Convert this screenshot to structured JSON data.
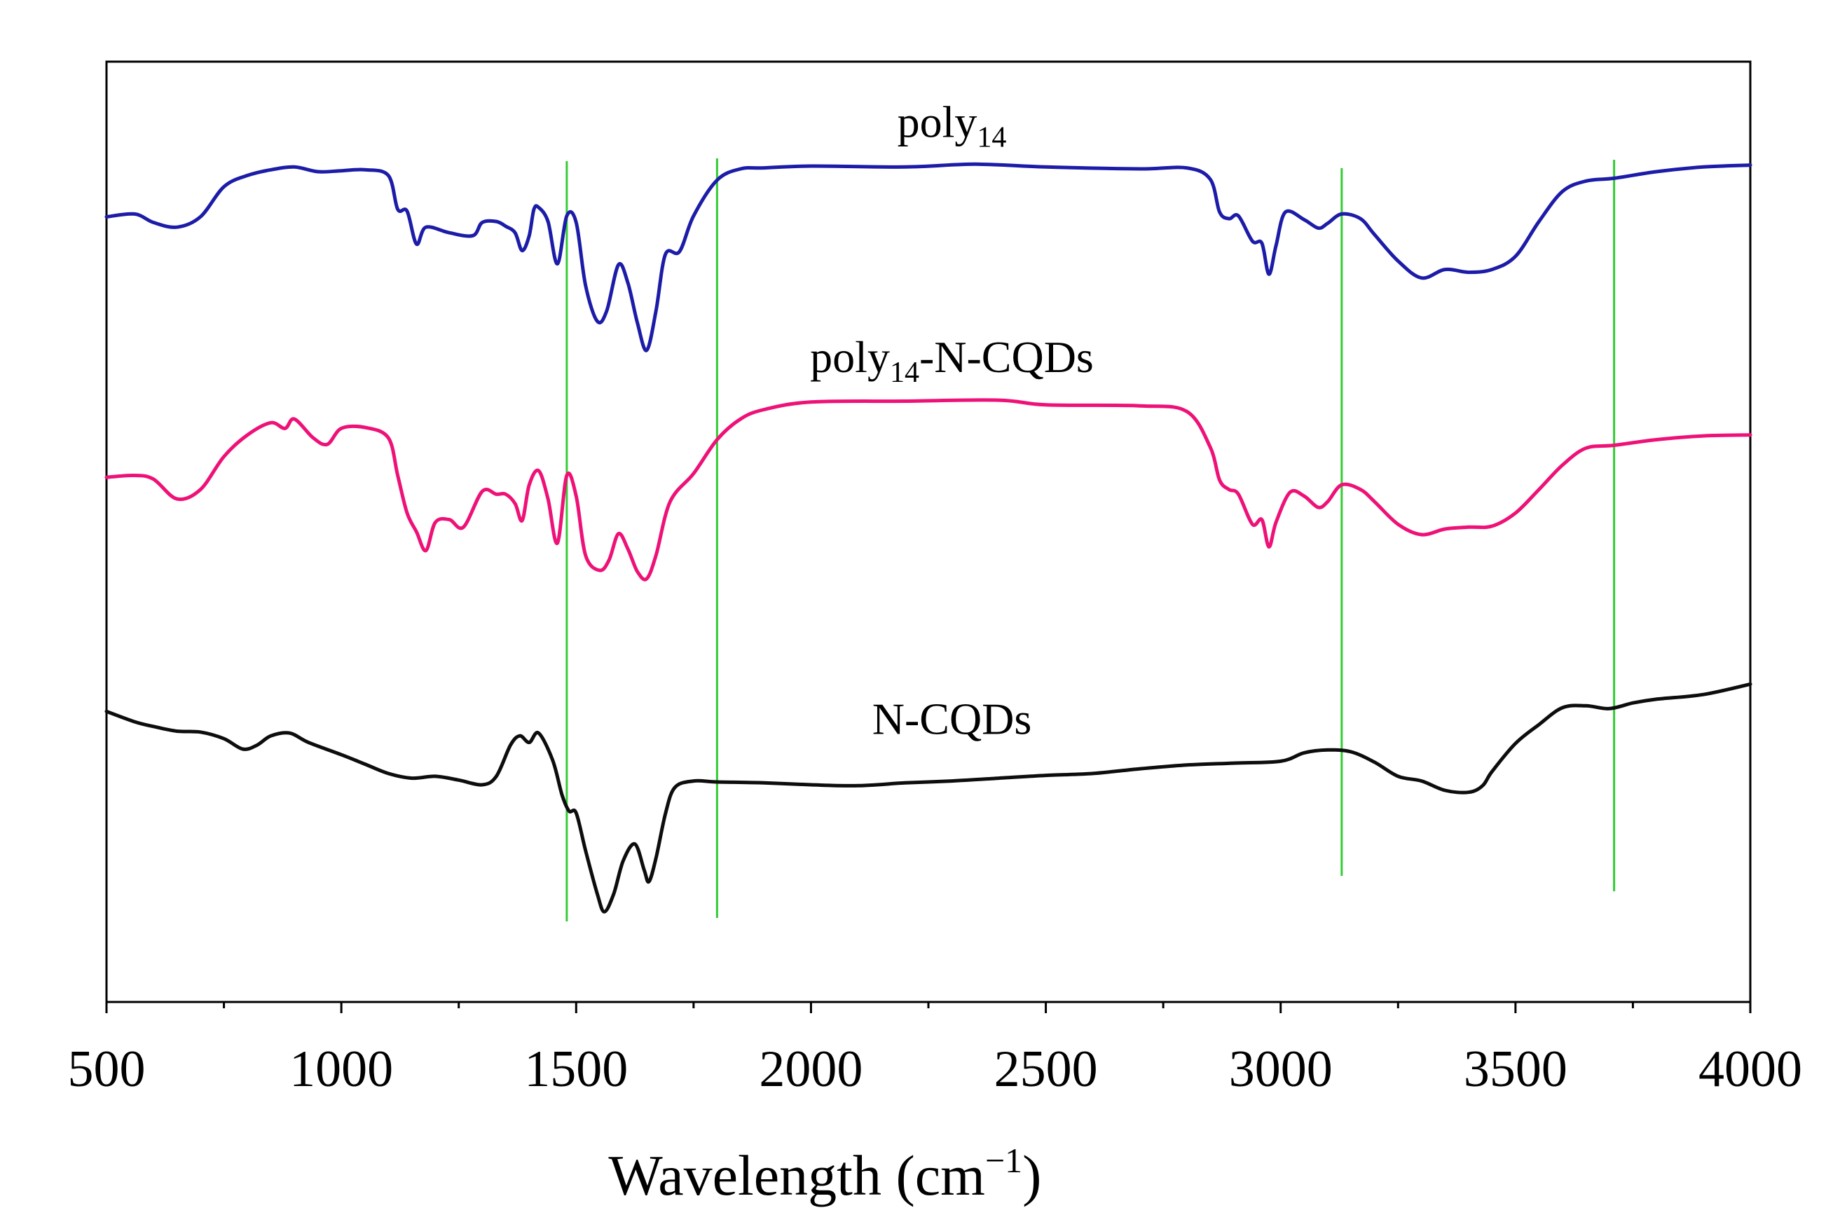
{
  "chart_data": {
    "type": "line",
    "title": "",
    "xlabel": "Wavelength (cm",
    "xlabel_sup": "−1",
    "xlabel_close": ")",
    "ylabel": "",
    "xlim": [
      500,
      4000
    ],
    "ylim": [
      0,
      100
    ],
    "x_ticks": [
      "500",
      "1000",
      "1500",
      "2000",
      "2500",
      "3000",
      "3500",
      "4000"
    ],
    "x_tick_values": [
      500,
      1000,
      1500,
      2000,
      2500,
      3000,
      3500,
      4000
    ],
    "reference_lines": [
      1480,
      1800,
      3130,
      3710
    ],
    "reference_line_color": "#33cc33",
    "series": [
      {
        "name": "poly14",
        "label_main": "poly",
        "label_sub": "14",
        "label_rest": "",
        "label_x": 2300,
        "label_y": 92,
        "color": "#1c1ca8",
        "points": [
          [
            500,
            83.5
          ],
          [
            560,
            83.8
          ],
          [
            600,
            82.9
          ],
          [
            650,
            82.4
          ],
          [
            700,
            83.5
          ],
          [
            750,
            86.7
          ],
          [
            800,
            87.9
          ],
          [
            850,
            88.5
          ],
          [
            900,
            88.8
          ],
          [
            950,
            88.3
          ],
          [
            1000,
            88.4
          ],
          [
            1050,
            88.5
          ],
          [
            1100,
            87.9
          ],
          [
            1120,
            84.3
          ],
          [
            1140,
            84.1
          ],
          [
            1160,
            80.6
          ],
          [
            1180,
            82.4
          ],
          [
            1230,
            81.8
          ],
          [
            1280,
            81.5
          ],
          [
            1300,
            82.9
          ],
          [
            1330,
            83.0
          ],
          [
            1350,
            82.5
          ],
          [
            1370,
            81.8
          ],
          [
            1385,
            79.9
          ],
          [
            1400,
            81.5
          ],
          [
            1410,
            84.3
          ],
          [
            1420,
            84.5
          ],
          [
            1440,
            83.0
          ],
          [
            1460,
            78.5
          ],
          [
            1480,
            83.6
          ],
          [
            1500,
            82.9
          ],
          [
            1520,
            76.2
          ],
          [
            1545,
            72.4
          ],
          [
            1565,
            73.5
          ],
          [
            1590,
            78.4
          ],
          [
            1610,
            76.5
          ],
          [
            1630,
            72.3
          ],
          [
            1650,
            69.3
          ],
          [
            1670,
            73.5
          ],
          [
            1690,
            79.5
          ],
          [
            1720,
            79.8
          ],
          [
            1750,
            83.6
          ],
          [
            1800,
            87.4
          ],
          [
            1850,
            88.6
          ],
          [
            1900,
            88.7
          ],
          [
            2000,
            88.9
          ],
          [
            2200,
            88.8
          ],
          [
            2350,
            89.1
          ],
          [
            2500,
            88.8
          ],
          [
            2700,
            88.6
          ],
          [
            2800,
            88.7
          ],
          [
            2850,
            87.5
          ],
          [
            2870,
            84.0
          ],
          [
            2890,
            83.3
          ],
          [
            2910,
            83.6
          ],
          [
            2940,
            80.9
          ],
          [
            2960,
            80.7
          ],
          [
            2975,
            77.4
          ],
          [
            2990,
            80.4
          ],
          [
            3010,
            84.0
          ],
          [
            3050,
            83.2
          ],
          [
            3080,
            82.3
          ],
          [
            3100,
            82.8
          ],
          [
            3130,
            83.8
          ],
          [
            3170,
            83.3
          ],
          [
            3200,
            81.6
          ],
          [
            3250,
            78.8
          ],
          [
            3300,
            77.0
          ],
          [
            3350,
            77.9
          ],
          [
            3400,
            77.6
          ],
          [
            3450,
            77.9
          ],
          [
            3500,
            79.3
          ],
          [
            3550,
            83.0
          ],
          [
            3600,
            86.2
          ],
          [
            3650,
            87.3
          ],
          [
            3710,
            87.6
          ],
          [
            3800,
            88.3
          ],
          [
            3900,
            88.8
          ],
          [
            4000,
            89.0
          ]
        ]
      },
      {
        "name": "poly14-N-CQDs",
        "label_main": "poly",
        "label_sub": "14",
        "label_rest": "-N-CQDs",
        "label_x": 2300,
        "label_y": 67,
        "color": "#ee1177",
        "points": [
          [
            500,
            55.8
          ],
          [
            560,
            56.0
          ],
          [
            600,
            55.6
          ],
          [
            650,
            53.5
          ],
          [
            700,
            54.5
          ],
          [
            750,
            58.0
          ],
          [
            800,
            60.3
          ],
          [
            850,
            61.6
          ],
          [
            880,
            61.0
          ],
          [
            900,
            62.0
          ],
          [
            940,
            60.0
          ],
          [
            970,
            59.3
          ],
          [
            1000,
            61.0
          ],
          [
            1050,
            61.1
          ],
          [
            1100,
            60.0
          ],
          [
            1120,
            56.0
          ],
          [
            1140,
            52.0
          ],
          [
            1160,
            50.0
          ],
          [
            1180,
            48.0
          ],
          [
            1200,
            51.0
          ],
          [
            1230,
            51.3
          ],
          [
            1260,
            50.5
          ],
          [
            1300,
            54.3
          ],
          [
            1330,
            54.0
          ],
          [
            1350,
            54.0
          ],
          [
            1370,
            53.0
          ],
          [
            1385,
            51.2
          ],
          [
            1400,
            55.0
          ],
          [
            1420,
            56.5
          ],
          [
            1440,
            53.5
          ],
          [
            1460,
            48.8
          ],
          [
            1480,
            56.0
          ],
          [
            1500,
            53.8
          ],
          [
            1520,
            47.5
          ],
          [
            1550,
            45.9
          ],
          [
            1570,
            47.0
          ],
          [
            1590,
            49.8
          ],
          [
            1610,
            48.2
          ],
          [
            1630,
            45.8
          ],
          [
            1650,
            45.0
          ],
          [
            1670,
            47.5
          ],
          [
            1700,
            53.2
          ],
          [
            1750,
            56.2
          ],
          [
            1800,
            59.8
          ],
          [
            1850,
            62.0
          ],
          [
            1900,
            63.0
          ],
          [
            2000,
            63.8
          ],
          [
            2200,
            63.9
          ],
          [
            2400,
            64.0
          ],
          [
            2500,
            63.5
          ],
          [
            2700,
            63.4
          ],
          [
            2800,
            62.8
          ],
          [
            2850,
            59.0
          ],
          [
            2870,
            55.5
          ],
          [
            2890,
            54.5
          ],
          [
            2910,
            54.0
          ],
          [
            2940,
            50.8
          ],
          [
            2960,
            51.3
          ],
          [
            2975,
            48.4
          ],
          [
            2990,
            51.0
          ],
          [
            3020,
            54.2
          ],
          [
            3050,
            53.8
          ],
          [
            3080,
            52.6
          ],
          [
            3100,
            53.2
          ],
          [
            3130,
            55.0
          ],
          [
            3170,
            54.5
          ],
          [
            3200,
            53.2
          ],
          [
            3250,
            50.8
          ],
          [
            3300,
            49.7
          ],
          [
            3350,
            50.3
          ],
          [
            3400,
            50.5
          ],
          [
            3450,
            50.6
          ],
          [
            3500,
            52.0
          ],
          [
            3550,
            54.5
          ],
          [
            3600,
            57.1
          ],
          [
            3650,
            58.9
          ],
          [
            3710,
            59.2
          ],
          [
            3800,
            59.8
          ],
          [
            3900,
            60.2
          ],
          [
            4000,
            60.3
          ]
        ]
      },
      {
        "name": "N-CQDs",
        "label_main": "N-CQDs",
        "label_sub": "",
        "label_rest": "",
        "label_x": 2300,
        "label_y": 28.5,
        "color": "#0d0d0d",
        "points": [
          [
            500,
            30.9
          ],
          [
            560,
            29.8
          ],
          [
            600,
            29.3
          ],
          [
            650,
            28.8
          ],
          [
            700,
            28.7
          ],
          [
            750,
            28.0
          ],
          [
            790,
            26.9
          ],
          [
            820,
            27.3
          ],
          [
            850,
            28.3
          ],
          [
            890,
            28.6
          ],
          [
            930,
            27.6
          ],
          [
            1000,
            26.3
          ],
          [
            1050,
            25.3
          ],
          [
            1100,
            24.3
          ],
          [
            1150,
            23.8
          ],
          [
            1200,
            24.0
          ],
          [
            1250,
            23.6
          ],
          [
            1300,
            23.1
          ],
          [
            1330,
            24.0
          ],
          [
            1360,
            27.3
          ],
          [
            1380,
            28.3
          ],
          [
            1400,
            27.6
          ],
          [
            1420,
            28.6
          ],
          [
            1450,
            25.7
          ],
          [
            1470,
            22.0
          ],
          [
            1485,
            20.3
          ],
          [
            1500,
            20.1
          ],
          [
            1520,
            16.1
          ],
          [
            1545,
            11.5
          ],
          [
            1560,
            9.6
          ],
          [
            1580,
            11.5
          ],
          [
            1600,
            15.0
          ],
          [
            1625,
            16.8
          ],
          [
            1645,
            14.0
          ],
          [
            1655,
            12.8
          ],
          [
            1670,
            15.3
          ],
          [
            1690,
            20.0
          ],
          [
            1710,
            22.8
          ],
          [
            1750,
            23.5
          ],
          [
            1800,
            23.4
          ],
          [
            1900,
            23.3
          ],
          [
            2000,
            23.1
          ],
          [
            2100,
            23.0
          ],
          [
            2200,
            23.3
          ],
          [
            2300,
            23.5
          ],
          [
            2400,
            23.8
          ],
          [
            2500,
            24.1
          ],
          [
            2600,
            24.3
          ],
          [
            2700,
            24.8
          ],
          [
            2800,
            25.2
          ],
          [
            2900,
            25.4
          ],
          [
            3000,
            25.6
          ],
          [
            3050,
            26.5
          ],
          [
            3100,
            26.8
          ],
          [
            3150,
            26.6
          ],
          [
            3200,
            25.5
          ],
          [
            3250,
            24.0
          ],
          [
            3300,
            23.5
          ],
          [
            3350,
            22.5
          ],
          [
            3400,
            22.3
          ],
          [
            3430,
            23.0
          ],
          [
            3450,
            24.5
          ],
          [
            3500,
            27.5
          ],
          [
            3550,
            29.5
          ],
          [
            3600,
            31.3
          ],
          [
            3650,
            31.5
          ],
          [
            3700,
            31.2
          ],
          [
            3750,
            31.8
          ],
          [
            3800,
            32.2
          ],
          [
            3900,
            32.7
          ],
          [
            4000,
            33.8
          ]
        ]
      }
    ]
  }
}
